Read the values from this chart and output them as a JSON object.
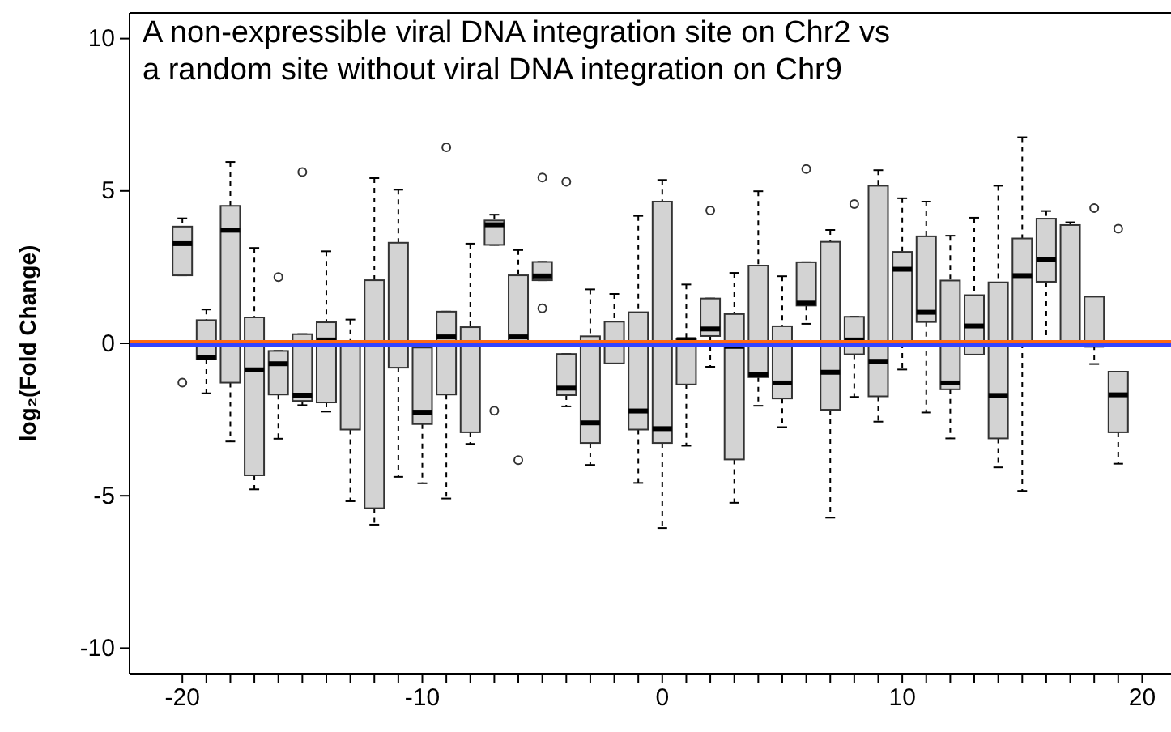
{
  "chart_data": {
    "type": "box",
    "title": "A non-expressible viral DNA integration site on Chr2 vs\na random site without viral DNA integration on Chr9",
    "ylabel": "log₂(Fold Change)",
    "x": [
      -20,
      -19,
      -18,
      -17,
      -16,
      -15,
      -14,
      -13,
      -12,
      -11,
      -10,
      -9,
      -8,
      -7,
      -6,
      -5,
      -4,
      -3,
      -2,
      -1,
      0,
      1,
      2,
      3,
      4,
      5,
      6,
      7,
      8,
      9,
      10,
      11,
      12,
      13,
      14,
      15,
      16,
      17,
      18,
      19
    ],
    "color": "#d3d3d3",
    "boxes": [
      {
        "low": 2.23,
        "q1": 2.23,
        "median": 3.27,
        "q3": 3.83,
        "high": 4.1,
        "outliers": [
          -1.29
        ]
      },
      {
        "low": -1.64,
        "q1": -0.53,
        "median": -0.46,
        "q3": 0.76,
        "high": 1.11
      },
      {
        "low": -3.22,
        "q1": -1.29,
        "median": 3.71,
        "q3": 4.51,
        "high": 5.95
      },
      {
        "low": -4.79,
        "q1": -4.33,
        "median": -0.87,
        "q3": 0.85,
        "high": 3.13
      },
      {
        "low": -3.13,
        "q1": -1.68,
        "median": -0.67,
        "q3": -0.25,
        "high": -0.25,
        "outliers": [
          2.17
        ]
      },
      {
        "low": -2.03,
        "q1": -1.89,
        "median": -1.7,
        "q3": 0.3,
        "high": 0.3,
        "outliers": [
          5.62
        ]
      },
      {
        "low": -2.24,
        "q1": -1.94,
        "median": 0.11,
        "q3": 0.69,
        "high": 3.02
      },
      {
        "low": -5.18,
        "q1": -2.83,
        "median": -0.05,
        "q3": -0.05,
        "high": 0.78
      },
      {
        "low": -5.95,
        "q1": -5.41,
        "median": -0.05,
        "q3": 2.07,
        "high": 5.42
      },
      {
        "low": -4.38,
        "q1": -0.8,
        "median": -0.05,
        "q3": 3.3,
        "high": 5.04
      },
      {
        "low": -4.59,
        "q1": -2.65,
        "median": -2.26,
        "q3": -0.14,
        "high": -0.14
      },
      {
        "low": -5.09,
        "q1": -1.68,
        "median": 0.21,
        "q3": 1.04,
        "high": 1.04,
        "outliers": [
          6.43
        ]
      },
      {
        "low": -3.3,
        "q1": -2.92,
        "median": -0.05,
        "q3": 0.53,
        "high": 3.27
      },
      {
        "low": 3.23,
        "q1": 3.23,
        "median": 3.89,
        "q3": 4.03,
        "high": 4.22,
        "outliers": [
          -2.21
        ]
      },
      {
        "low": 0,
        "q1": 0,
        "median": 0.21,
        "q3": 2.23,
        "high": 3.06,
        "outliers": [
          -3.83
        ]
      },
      {
        "low": 2.07,
        "q1": 2.07,
        "median": 2.21,
        "q3": 2.67,
        "high": 2.67,
        "outliers": [
          5.44,
          1.15
        ]
      },
      {
        "low": -2.07,
        "q1": -1.7,
        "median": -1.47,
        "q3": -0.35,
        "high": -0.35,
        "outliers": [
          5.3
        ]
      },
      {
        "low": -3.99,
        "q1": -3.27,
        "median": -2.61,
        "q3": 0.23,
        "high": 1.77
      },
      {
        "low": -0.66,
        "q1": -0.66,
        "median": -0.05,
        "q3": 0.71,
        "high": 1.62
      },
      {
        "low": -4.58,
        "q1": -2.83,
        "median": -2.22,
        "q3": 1.02,
        "high": 4.18
      },
      {
        "low": -6.06,
        "q1": -3.27,
        "median": -2.8,
        "q3": 4.65,
        "high": 5.36
      },
      {
        "low": -3.36,
        "q1": -1.35,
        "median": 0.12,
        "q3": 0.15,
        "high": 1.93
      },
      {
        "low": -0.77,
        "q1": 0.24,
        "median": 0.47,
        "q3": 1.47,
        "high": 1.47,
        "outliers": [
          4.36
        ]
      },
      {
        "low": -5.23,
        "q1": -3.81,
        "median": -0.1,
        "q3": 0.96,
        "high": 2.31
      },
      {
        "low": -2.05,
        "q1": -1.11,
        "median": -1.03,
        "q3": 2.55,
        "high": 4.99
      },
      {
        "low": -2.75,
        "q1": -1.81,
        "median": -1.3,
        "q3": 0.56,
        "high": 2.2
      },
      {
        "low": 0.64,
        "q1": 1.24,
        "median": 1.32,
        "q3": 2.66,
        "high": 2.66,
        "outliers": [
          5.72
        ]
      },
      {
        "low": -5.72,
        "q1": -2.18,
        "median": -0.95,
        "q3": 3.33,
        "high": 3.72
      },
      {
        "low": -1.76,
        "q1": -0.36,
        "median": 0.11,
        "q3": 0.87,
        "high": 0.87,
        "outliers": [
          4.57
        ]
      },
      {
        "low": -2.57,
        "q1": -1.74,
        "median": -0.59,
        "q3": 5.17,
        "high": 5.68
      },
      {
        "low": -0.86,
        "q1": 0,
        "median": 2.43,
        "q3": 3.0,
        "high": 4.76
      },
      {
        "low": -2.27,
        "q1": 0.7,
        "median": 1.02,
        "q3": 3.51,
        "high": 4.65
      },
      {
        "low": -3.12,
        "q1": -1.51,
        "median": -1.3,
        "q3": 2.06,
        "high": 3.53
      },
      {
        "low": -0.37,
        "q1": -0.37,
        "median": 0.57,
        "q3": 1.58,
        "high": 4.12
      },
      {
        "low": -4.07,
        "q1": -3.12,
        "median": -1.71,
        "q3": 2.0,
        "high": 5.17
      },
      {
        "low": -4.84,
        "q1": 0,
        "median": 2.22,
        "q3": 3.44,
        "high": 6.76
      },
      {
        "low": 0,
        "q1": 2.02,
        "median": 2.75,
        "q3": 4.09,
        "high": 4.34
      },
      {
        "low": 0,
        "q1": 0,
        "median": 0,
        "q3": 3.88,
        "high": 3.97
      },
      {
        "low": -0.68,
        "q1": -0.06,
        "median": -0.06,
        "q3": 1.53,
        "high": 1.53,
        "outliers": [
          4.44
        ]
      },
      {
        "low": -3.95,
        "q1": -2.92,
        "median": -1.69,
        "q3": -0.93,
        "high": -0.93,
        "outliers": [
          3.76
        ]
      }
    ],
    "xlim": [
      -22.2,
      21.2
    ],
    "xticks": [
      -20,
      {
        "value": -19,
        "label": null
      },
      {
        "value": -18,
        "label": null
      },
      {
        "value": -17,
        "label": null
      },
      {
        "value": -16,
        "label": null
      },
      {
        "value": -15,
        "label": null
      },
      {
        "value": -14,
        "label": null
      },
      {
        "value": -13,
        "label": null
      },
      {
        "value": -12,
        "label": null
      },
      {
        "value": -11,
        "label": null
      },
      -10,
      {
        "value": -9,
        "label": null
      },
      {
        "value": -8,
        "label": null
      },
      {
        "value": -7,
        "label": null
      },
      {
        "value": -6,
        "label": null
      },
      {
        "value": -5,
        "label": null
      },
      {
        "value": -4,
        "label": null
      },
      {
        "value": -3,
        "label": null
      },
      {
        "value": -2,
        "label": null
      },
      {
        "value": -1,
        "label": null
      },
      0,
      {
        "value": 1,
        "label": null
      },
      {
        "value": 2,
        "label": null
      },
      {
        "value": 3,
        "label": null
      },
      {
        "value": 4,
        "label": null
      },
      {
        "value": 5,
        "label": null
      },
      {
        "value": 6,
        "label": null
      },
      {
        "value": 7,
        "label": null
      },
      {
        "value": 8,
        "label": null
      },
      {
        "value": 9,
        "label": null
      },
      10,
      {
        "value": 11,
        "label": null
      },
      {
        "value": 12,
        "label": null
      },
      {
        "value": 13,
        "label": null
      },
      {
        "value": 14,
        "label": null
      },
      {
        "value": 15,
        "label": null
      },
      {
        "value": 16,
        "label": null
      },
      {
        "value": 17,
        "label": null
      },
      {
        "value": 18,
        "label": null
      },
      {
        "value": 19,
        "label": null
      },
      20
    ],
    "ylim": [
      -10.84,
      10.84
    ],
    "yticks": [
      -10,
      -5,
      0,
      5,
      10
    ],
    "ref_lines": [
      {
        "axis": "y",
        "value": 0.05,
        "color": "#ff6a13"
      },
      {
        "axis": "y",
        "value": -0.05,
        "color": "#3344ff"
      }
    ]
  }
}
